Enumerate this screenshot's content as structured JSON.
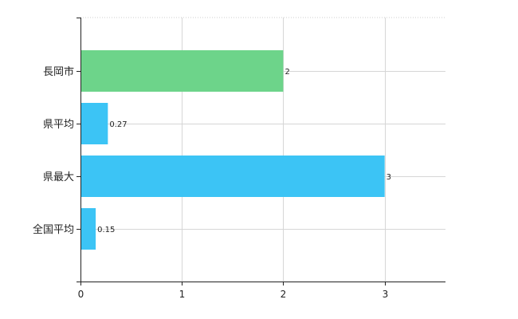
{
  "chart_data": {
    "type": "bar",
    "orientation": "horizontal",
    "categories": [
      "長岡市",
      "県平均",
      "県最大",
      "全国平均"
    ],
    "values": [
      2,
      0.27,
      3,
      0.15
    ],
    "value_labels": [
      "2",
      "0.27",
      "3",
      "0.15"
    ],
    "bar_colors": [
      "#6dd48a",
      "#3cc4f5",
      "#3cc4f5",
      "#3cc4f5"
    ],
    "xlim": [
      0,
      3.6
    ],
    "x_ticks": [
      0,
      1,
      2,
      3
    ],
    "x_tick_labels": [
      "0",
      "1",
      "2",
      "3"
    ],
    "grid": true,
    "title": "",
    "xlabel": "",
    "ylabel": ""
  }
}
